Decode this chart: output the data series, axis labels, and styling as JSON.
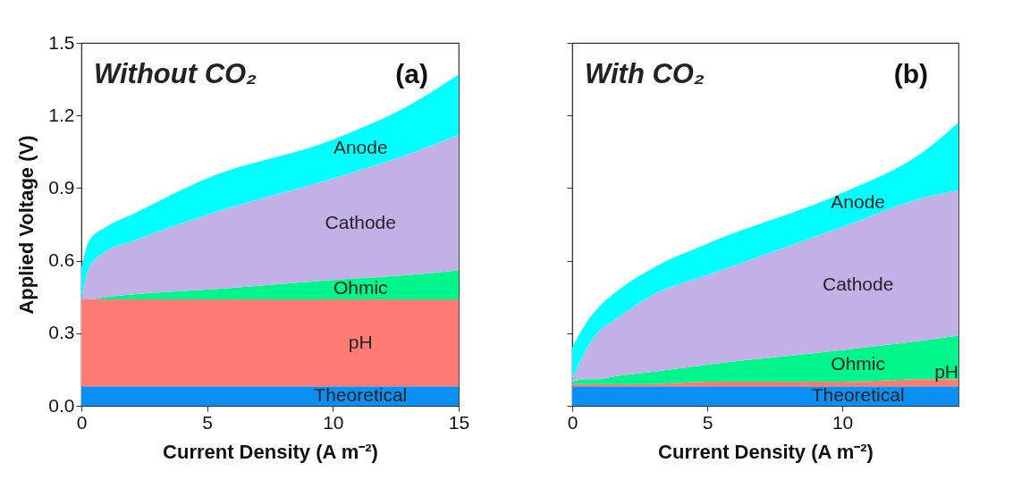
{
  "chart_data": [
    {
      "type": "area",
      "stacked": true,
      "x": [
        0,
        0.3,
        1,
        2,
        5,
        10,
        13,
        15
      ],
      "series": [
        {
          "name": "Theoretical",
          "color": "#0a8ff2",
          "values": [
            0.08,
            0.08,
            0.08,
            0.08,
            0.08,
            0.08,
            0.08,
            0.08
          ]
        },
        {
          "name": "pH",
          "color": "#ff7b73",
          "values": [
            0.36,
            0.36,
            0.36,
            0.36,
            0.36,
            0.36,
            0.36,
            0.36
          ]
        },
        {
          "name": "Ohmic",
          "color": "#00f58a",
          "values": [
            0,
            0,
            0.01,
            0.02,
            0.04,
            0.08,
            0.1,
            0.12
          ]
        },
        {
          "name": "Cathode",
          "color": "#c2b1e6",
          "values": [
            0,
            0.13,
            0.19,
            0.22,
            0.31,
            0.42,
            0.5,
            0.56
          ]
        },
        {
          "name": "Anode",
          "color": "#00ffff",
          "values": [
            0.13,
            0.11,
            0.1,
            0.11,
            0.15,
            0.16,
            0.2,
            0.25
          ]
        }
      ],
      "xlim": [
        0,
        15
      ],
      "xticks": [
        0,
        5,
        10,
        15
      ],
      "ylim": [
        0,
        1.5
      ],
      "yticks": [
        {
          "value": 0,
          "label": "0.0"
        },
        0.3,
        0.6,
        0.9,
        1.2,
        1.5
      ],
      "xlabel": "Current Density (A m⁻²)",
      "ylabel": "Applied Voltage (V)",
      "annotations": [
        "Without CO₂",
        "(a)"
      ]
    },
    {
      "type": "area",
      "stacked": true,
      "x": [
        0,
        0.5,
        1,
        1.5,
        3,
        5,
        10,
        13,
        14.3
      ],
      "series": [
        {
          "name": "Theoretical",
          "color": "#0a8ff2",
          "values": [
            0.08,
            0.08,
            0.08,
            0.08,
            0.08,
            0.08,
            0.08,
            0.08,
            0.08
          ]
        },
        {
          "name": "pH",
          "color": "#ff7b73",
          "values": [
            0.01,
            0.01,
            0.01,
            0.01,
            0.01,
            0.02,
            0.02,
            0.03,
            0.03
          ]
        },
        {
          "name": "Ohmic",
          "color": "#00f58a",
          "values": [
            0.01,
            0.02,
            0.02,
            0.03,
            0.05,
            0.07,
            0.13,
            0.16,
            0.18
          ]
        },
        {
          "name": "Cathode",
          "color": "#c2b1e6",
          "values": [
            0.01,
            0.12,
            0.2,
            0.23,
            0.32,
            0.37,
            0.51,
            0.59,
            0.6
          ]
        },
        {
          "name": "Anode",
          "color": "#00ffff",
          "values": [
            0.13,
            0.11,
            0.1,
            0.11,
            0.11,
            0.13,
            0.14,
            0.19,
            0.28
          ]
        }
      ],
      "xlim": [
        0,
        14.3
      ],
      "xticks": [
        0,
        5,
        10
      ],
      "ylim": [
        0,
        1.5
      ],
      "xlabel": "Current Density (A m⁻²)",
      "tick_labels": "x",
      "yticks": [
        0,
        0.3,
        0.6,
        0.9,
        1.2,
        1.5
      ],
      "annotations": [
        "With CO₂",
        "(b)"
      ]
    }
  ]
}
